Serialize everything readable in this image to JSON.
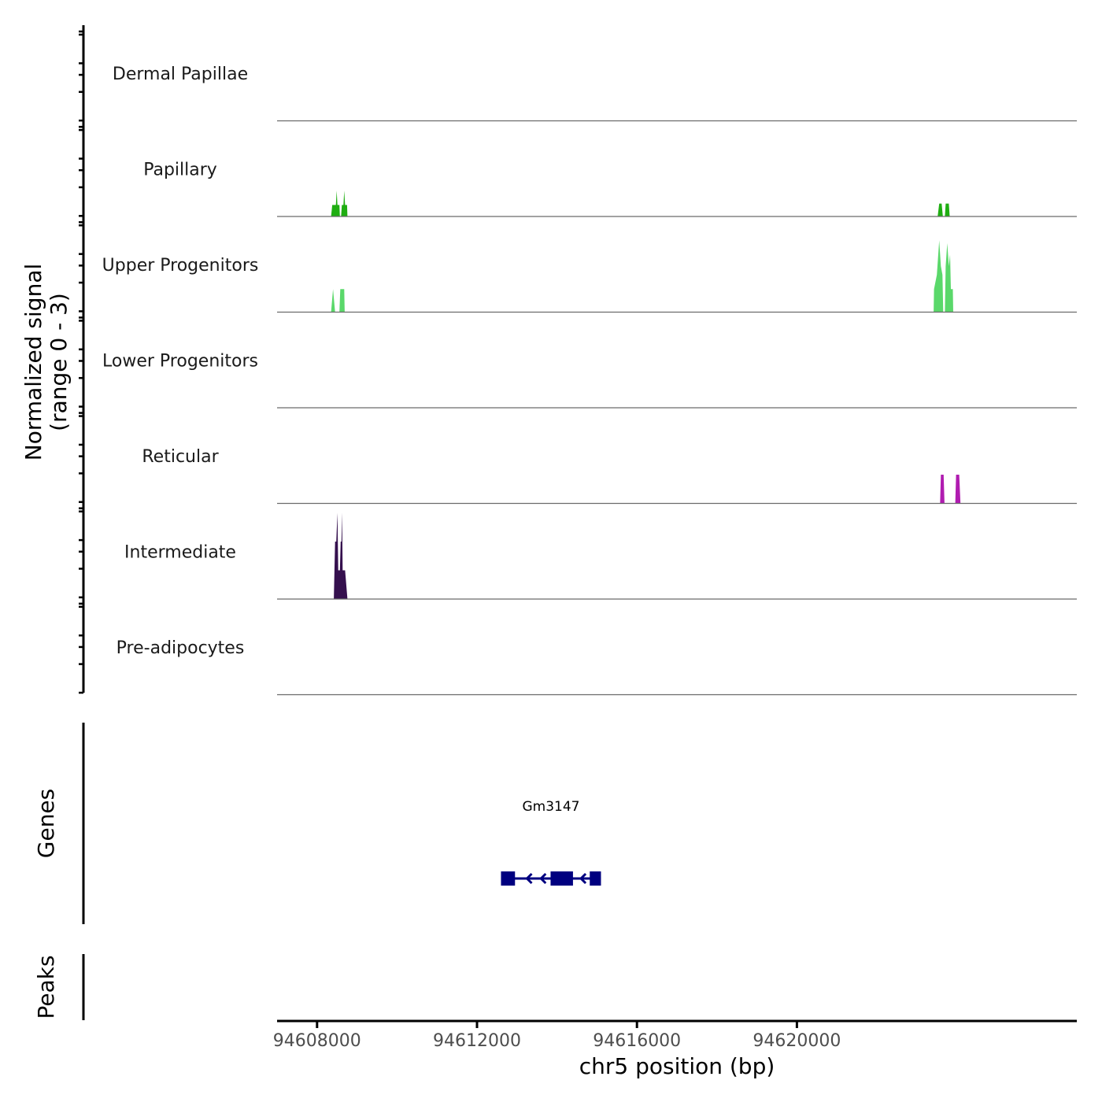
{
  "chart_data": {
    "type": "area",
    "title": "",
    "chromosome": "chr5",
    "xlabel": "chr5 position (bp)",
    "xlim": [
      94607000,
      94627000
    ],
    "x_ticks": [
      94608000,
      94612000,
      94616000,
      94620000
    ],
    "x_tick_labels": [
      "94608000",
      "94612000",
      "94616000",
      "94620000"
    ],
    "ylabel_line1": "Normalized signal",
    "ylabel_line2": "(range 0 - 3)",
    "ylim": [
      0,
      3
    ],
    "coverage_tracks": [
      {
        "name": "Dermal Papillae",
        "color": "#2fa84f",
        "points": []
      },
      {
        "name": "Papillary",
        "color": "#1fae12",
        "points": [
          [
            94608350,
            0
          ],
          [
            94608380,
            0.4
          ],
          [
            94608470,
            0.4
          ],
          [
            94608490,
            0.9
          ],
          [
            94608510,
            0.4
          ],
          [
            94608560,
            0.4
          ],
          [
            94608570,
            0
          ],
          [
            94608600,
            0
          ],
          [
            94608620,
            0.4
          ],
          [
            94608660,
            0.4
          ],
          [
            94608680,
            0.9
          ],
          [
            94608700,
            0.4
          ],
          [
            94608750,
            0.4
          ],
          [
            94608760,
            0
          ],
          [
            94623520,
            0
          ],
          [
            94623560,
            0.45
          ],
          [
            94623620,
            0.45
          ],
          [
            94623650,
            0
          ],
          [
            94623700,
            0
          ],
          [
            94623720,
            0.45
          ],
          [
            94623800,
            0.45
          ],
          [
            94623820,
            0
          ]
        ]
      },
      {
        "name": "Upper Progenitors",
        "color": "#5ad86a",
        "points": [
          [
            94608350,
            0
          ],
          [
            94608400,
            0.8
          ],
          [
            94608450,
            0
          ],
          [
            94608560,
            0
          ],
          [
            94608580,
            0.8
          ],
          [
            94608680,
            0.8
          ],
          [
            94608690,
            0
          ],
          [
            94623420,
            0
          ],
          [
            94623430,
            0.8
          ],
          [
            94623500,
            1.3
          ],
          [
            94623560,
            2.5
          ],
          [
            94623600,
            1.6
          ],
          [
            94623640,
            1.3
          ],
          [
            94623660,
            0
          ],
          [
            94623700,
            0
          ],
          [
            94623720,
            1.6
          ],
          [
            94623760,
            2.4
          ],
          [
            94623800,
            1.6
          ],
          [
            94623830,
            2.0
          ],
          [
            94623850,
            0.8
          ],
          [
            94623900,
            0.8
          ],
          [
            94623910,
            0
          ]
        ]
      },
      {
        "name": "Lower Progenitors",
        "color": "#7fb7e8",
        "points": []
      },
      {
        "name": "Reticular",
        "color": "#b01cb0",
        "points": [
          [
            94623580,
            0
          ],
          [
            94623600,
            1.0
          ],
          [
            94623670,
            1.0
          ],
          [
            94623690,
            0
          ],
          [
            94623960,
            0
          ],
          [
            94623980,
            1.0
          ],
          [
            94624060,
            1.0
          ],
          [
            94624090,
            0
          ]
        ]
      },
      {
        "name": "Intermediate",
        "color": "#35104e",
        "points": [
          [
            94608420,
            0
          ],
          [
            94608450,
            2.0
          ],
          [
            94608480,
            2.0
          ],
          [
            94608510,
            3.0
          ],
          [
            94608530,
            1.0
          ],
          [
            94608570,
            1.0
          ],
          [
            94608590,
            2.0
          ],
          [
            94608610,
            2.0
          ],
          [
            94608625,
            3.0
          ],
          [
            94608640,
            1.0
          ],
          [
            94608700,
            1.0
          ],
          [
            94608760,
            0
          ]
        ]
      },
      {
        "name": "Pre-adipocytes",
        "color": "#f0a040",
        "points": []
      }
    ],
    "gene_track_label": "Genes",
    "genes": [
      {
        "name": "Gm3147",
        "strand": "-",
        "start": 94612600,
        "end": 94615100,
        "exons": [
          [
            94612600,
            94612950
          ],
          [
            94613840,
            94614400
          ],
          [
            94614820,
            94615100
          ]
        ],
        "arrow_positions": [
          94613250,
          94613600,
          94614600
        ],
        "color": "#000080"
      }
    ],
    "peaks_track_label": "Peaks",
    "peaks": []
  }
}
